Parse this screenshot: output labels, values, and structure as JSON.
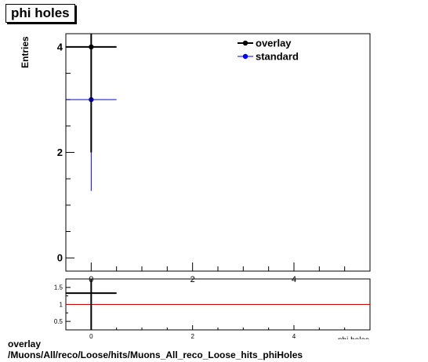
{
  "header": {
    "title": "phi holes"
  },
  "footer": {
    "line1": "overlay",
    "line2": "/Muons/All/reco/Loose/hits/Muons_All_reco_Loose_hits_phiHoles"
  },
  "colors": {
    "overlay": "#000000",
    "standard": "#0000ff",
    "ratio_line": "#cc0000"
  },
  "chart_data": [
    {
      "type": "scatter",
      "title": "phi holes",
      "ylabel": "Entries",
      "xlabel": "phi holes",
      "xlim": [
        -0.5,
        5.5
      ],
      "ylim": [
        -0.25,
        4.25
      ],
      "x_ticks": [
        0,
        2,
        4
      ],
      "y_ticks": [
        0,
        2,
        4
      ],
      "legend": {
        "placement": "top-right",
        "entries": [
          "overlay",
          "standard"
        ]
      },
      "series": [
        {
          "name": "overlay",
          "color": "#000000",
          "points": [
            {
              "x": 0,
              "y": 4,
              "xerr": 0.5,
              "yerr": 2
            }
          ]
        },
        {
          "name": "standard",
          "color": "#0000ff",
          "points": [
            {
              "x": 0,
              "y": 3,
              "xerr": 0.5,
              "yerr": 1.73
            }
          ]
        }
      ]
    },
    {
      "type": "scatter",
      "title": "",
      "xlim": [
        -0.5,
        5.5
      ],
      "ylim": [
        0.25,
        1.75
      ],
      "x_ticks": [
        0,
        2,
        4
      ],
      "y_ticks": [
        0.5,
        1,
        1.5
      ],
      "y_tick_labels": [
        "0.5",
        "1",
        "1.5"
      ],
      "reference_line": 1,
      "series": [
        {
          "name": "ratio",
          "color": "#000000",
          "points": [
            {
              "x": 0,
              "y": 1.333,
              "xerr": 0.5,
              "yerr": 1.2
            }
          ]
        }
      ]
    }
  ]
}
